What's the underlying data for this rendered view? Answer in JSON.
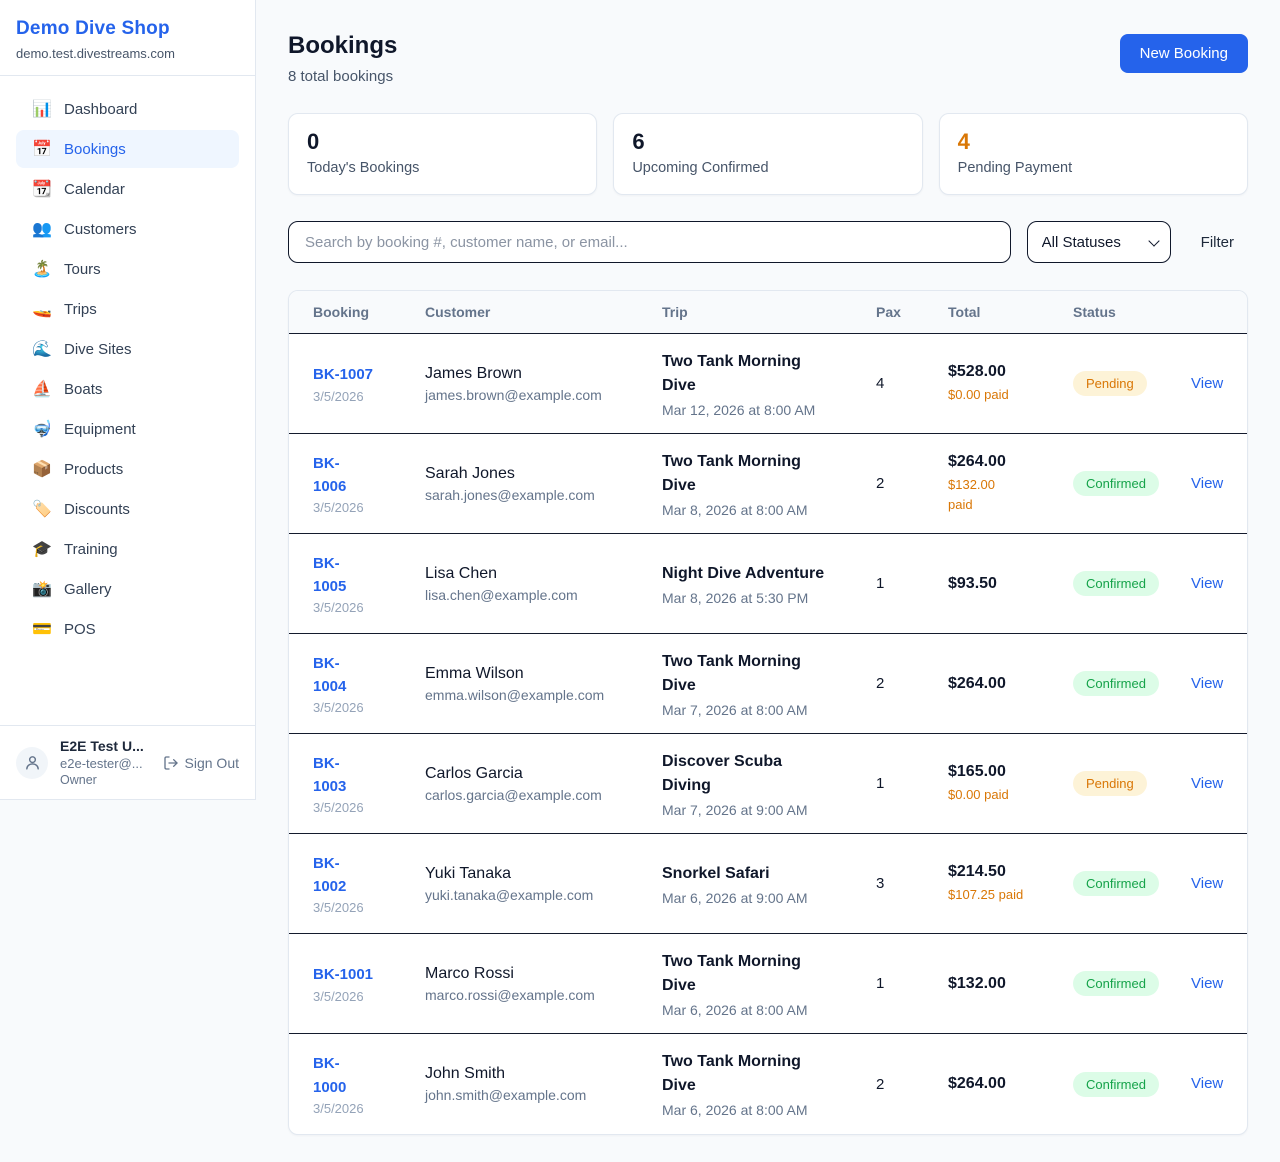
{
  "sidebar": {
    "brand": {
      "name": "Demo Dive Shop",
      "domain": "demo.test.divestreams.com"
    },
    "items": [
      {
        "label": "Dashboard",
        "icon": "📊",
        "icon_name": "bar-chart-icon",
        "active": false
      },
      {
        "label": "Bookings",
        "icon": "📅",
        "icon_name": "calendar-icon",
        "active": true
      },
      {
        "label": "Calendar",
        "icon": "📆",
        "icon_name": "tear-off-calendar-icon",
        "active": false
      },
      {
        "label": "Customers",
        "icon": "👥",
        "icon_name": "people-icon",
        "active": false
      },
      {
        "label": "Tours",
        "icon": "🏝️",
        "icon_name": "island-icon",
        "active": false
      },
      {
        "label": "Trips",
        "icon": "🚤",
        "icon_name": "speedboat-icon",
        "active": false
      },
      {
        "label": "Dive Sites",
        "icon": "🌊",
        "icon_name": "wave-icon",
        "active": false
      },
      {
        "label": "Boats",
        "icon": "⛵",
        "icon_name": "sailboat-icon",
        "active": false
      },
      {
        "label": "Equipment",
        "icon": "🤿",
        "icon_name": "diving-mask-icon",
        "active": false
      },
      {
        "label": "Products",
        "icon": "📦",
        "icon_name": "package-icon",
        "active": false
      },
      {
        "label": "Discounts",
        "icon": "🏷️",
        "icon_name": "tag-icon",
        "active": false
      },
      {
        "label": "Training",
        "icon": "🎓",
        "icon_name": "graduation-cap-icon",
        "active": false
      },
      {
        "label": "Gallery",
        "icon": "📸",
        "icon_name": "camera-icon",
        "active": false
      },
      {
        "label": "POS",
        "icon": "💳",
        "icon_name": "credit-card-icon",
        "active": false
      }
    ],
    "user": {
      "name": "E2E Test U...",
      "email": "e2e-tester@...",
      "role": "Owner",
      "sign_out_label": "Sign Out"
    }
  },
  "header": {
    "title": "Bookings",
    "subtitle": "8 total bookings",
    "new_booking_label": "New Booking"
  },
  "stats": [
    {
      "value": "0",
      "label": "Today's Bookings",
      "highlight": false
    },
    {
      "value": "6",
      "label": "Upcoming Confirmed",
      "highlight": false
    },
    {
      "value": "4",
      "label": "Pending Payment",
      "highlight": true
    }
  ],
  "filters": {
    "search_placeholder": "Search by booking #, customer name, or email...",
    "status_selected": "All Statuses",
    "filter_label": "Filter"
  },
  "table": {
    "columns": [
      "Booking",
      "Customer",
      "Trip",
      "Pax",
      "Total",
      "Status"
    ],
    "view_label": "View",
    "rows": [
      {
        "id": "BK-1007",
        "date": "3/5/2026",
        "customer": "James Brown",
        "email": "james.brown@example.com",
        "trip": "Two Tank Morning\nDive",
        "trip_datetime": "Mar 12, 2026 at 8:00 AM",
        "pax": "4",
        "total": "$528.00",
        "paid": "$0.00 paid",
        "status": "Pending"
      },
      {
        "id": "BK-\n1006",
        "date": "3/5/2026",
        "customer": "Sarah Jones",
        "email": "sarah.jones@example.com",
        "trip": "Two Tank Morning\nDive",
        "trip_datetime": "Mar 8, 2026 at 8:00 AM",
        "pax": "2",
        "total": "$264.00",
        "paid": "$132.00\npaid",
        "status": "Confirmed"
      },
      {
        "id": "BK-\n1005",
        "date": "3/5/2026",
        "customer": "Lisa Chen",
        "email": "lisa.chen@example.com",
        "trip": "Night Dive Adventure",
        "trip_datetime": "Mar 8, 2026 at 5:30 PM",
        "pax": "1",
        "total": "$93.50",
        "paid": "",
        "status": "Confirmed"
      },
      {
        "id": "BK-\n1004",
        "date": "3/5/2026",
        "customer": "Emma Wilson",
        "email": "emma.wilson@example.com",
        "trip": "Two Tank Morning\nDive",
        "trip_datetime": "Mar 7, 2026 at 8:00 AM",
        "pax": "2",
        "total": "$264.00",
        "paid": "",
        "status": "Confirmed"
      },
      {
        "id": "BK-\n1003",
        "date": "3/5/2026",
        "customer": "Carlos Garcia",
        "email": "carlos.garcia@example.com",
        "trip": "Discover Scuba\nDiving",
        "trip_datetime": "Mar 7, 2026 at 9:00 AM",
        "pax": "1",
        "total": "$165.00",
        "paid": "$0.00 paid",
        "status": "Pending"
      },
      {
        "id": "BK-\n1002",
        "date": "3/5/2026",
        "customer": "Yuki Tanaka",
        "email": "yuki.tanaka@example.com",
        "trip": "Snorkel Safari",
        "trip_datetime": "Mar 6, 2026 at 9:00 AM",
        "pax": "3",
        "total": "$214.50",
        "paid": "$107.25 paid",
        "status": "Confirmed"
      },
      {
        "id": "BK-1001",
        "date": "3/5/2026",
        "customer": "Marco Rossi",
        "email": "marco.rossi@example.com",
        "trip": "Two Tank Morning\nDive",
        "trip_datetime": "Mar 6, 2026 at 8:00 AM",
        "pax": "1",
        "total": "$132.00",
        "paid": "",
        "status": "Confirmed"
      },
      {
        "id": "BK-\n1000",
        "date": "3/5/2026",
        "customer": "John Smith",
        "email": "john.smith@example.com",
        "trip": "Two Tank Morning\nDive",
        "trip_datetime": "Mar 6, 2026 at 8:00 AM",
        "pax": "2",
        "total": "$264.00",
        "paid": "",
        "status": "Confirmed"
      }
    ]
  },
  "colors": {
    "brand_blue": "#2563eb",
    "pending_text": "#d97706",
    "pending_bg": "#fdf3d7",
    "confirmed_text": "#16a34a",
    "confirmed_bg": "#dcfce7",
    "link_blue": "#2563eb"
  }
}
